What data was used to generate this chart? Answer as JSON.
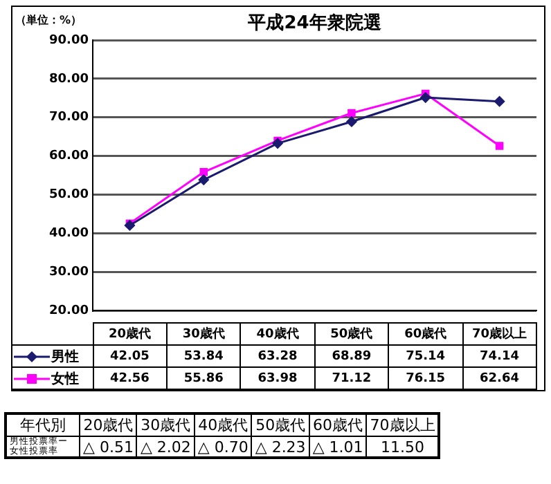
{
  "chart_data": {
    "type": "line",
    "title": "平成24年衆院選",
    "ylabel": "（単位：%）",
    "categories": [
      "20歳代",
      "30歳代",
      "40歳代",
      "50歳代",
      "60歳代",
      "70歳以上"
    ],
    "series": [
      {
        "name": "男性",
        "color": "#1a1a6e",
        "marker": "diamond",
        "values": [
          42.05,
          53.84,
          63.28,
          68.89,
          75.14,
          74.14
        ]
      },
      {
        "name": "女性",
        "color": "#ff00ff",
        "marker": "square",
        "values": [
          42.56,
          55.86,
          63.98,
          71.12,
          76.15,
          62.64
        ]
      }
    ],
    "ylim": [
      20,
      90
    ],
    "yticks": [
      {
        "value": 20,
        "label": "20.00"
      },
      {
        "value": 30,
        "label": "30.00"
      },
      {
        "value": 40,
        "label": "40.00"
      },
      {
        "value": 50,
        "label": "50.00"
      },
      {
        "value": 60,
        "label": "60.00"
      },
      {
        "value": 70,
        "label": "70.00"
      },
      {
        "value": 80,
        "label": "80.00"
      },
      {
        "value": 90,
        "label": "90.00"
      }
    ],
    "grid": "y",
    "data_labels": true,
    "legend": "bottom left",
    "annotations": [
      "年代別",
      "20歳代",
      "30歳代",
      "40歳代",
      "50歳代",
      "60歳代",
      "70歳以上",
      "男性投票率ー女性投票率",
      "△ 0.51",
      "△ 2.02",
      "△ 0.70",
      "△ 2.23",
      "△ 1.01",
      "11.50"
    ]
  }
}
